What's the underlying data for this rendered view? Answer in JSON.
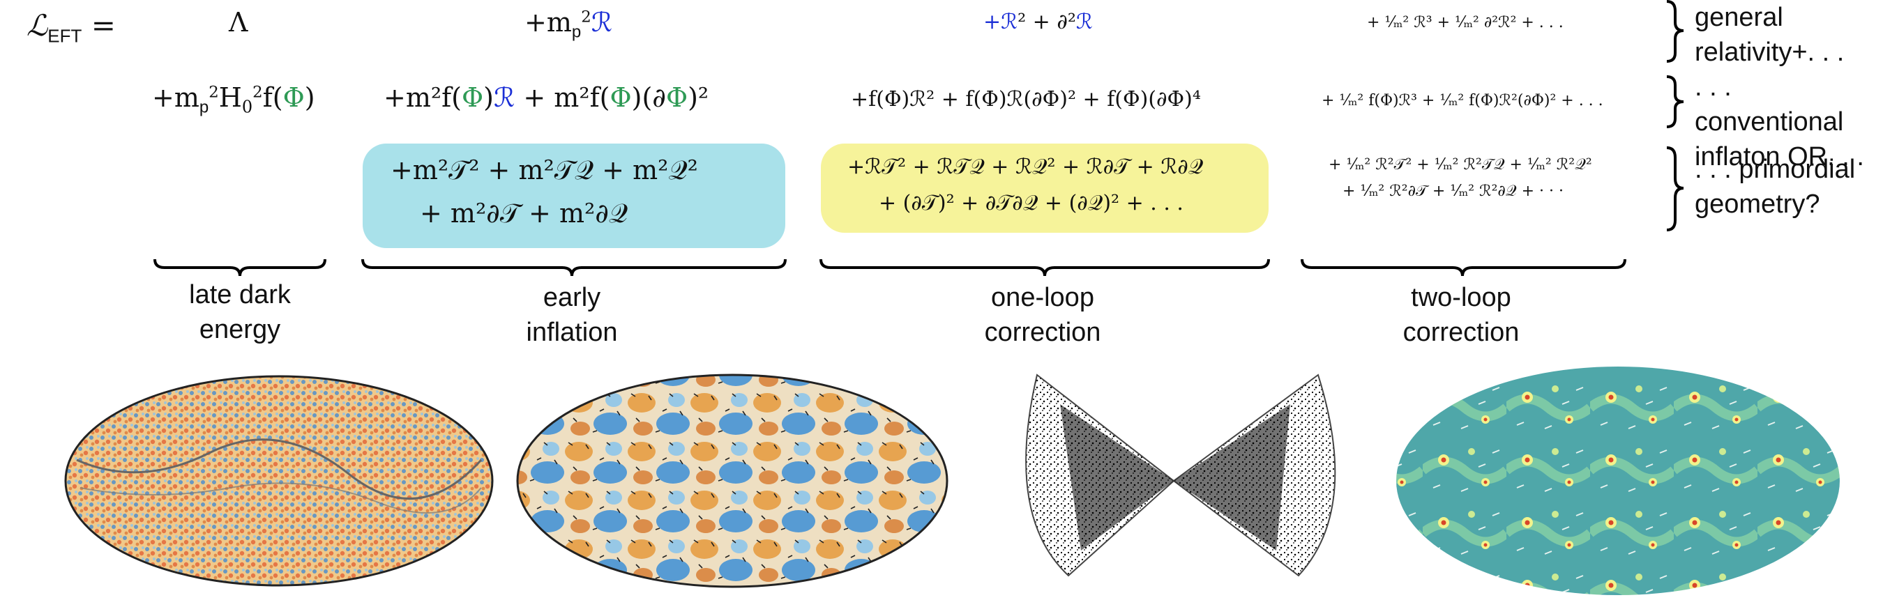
{
  "lagrangian_label": "ℒ",
  "lagrangian_sub": "EFT",
  "lagrangian_eq": " =",
  "row1": {
    "c1": "Λ",
    "c2_pre": "+m",
    "c2_sub": "p",
    "c2_sup": "2",
    "c2_R": "ℛ",
    "c3_pre": "+",
    "c3_R1": "ℛ",
    "c3_mid": "² + ∂²",
    "c3_R2": "ℛ",
    "c4": "+ ¹⁄ₘ² ℛ³ + ¹⁄ₘ² ∂²ℛ² + . . ."
  },
  "row2": {
    "c1": "+m",
    "c1_b": "H",
    "c1_c": "f(",
    "c1_phi": "Φ",
    "c1_d": ")",
    "c2": "+m²f(",
    "c2_phi": "Φ",
    "c2_b": ")",
    "c2_R": "ℛ",
    "c2_c": " + m²f(",
    "c2_phi2": "Φ",
    "c2_d": ")(∂",
    "c2_phi3": "Φ",
    "c2_e": ")²",
    "c3": "+f(Φ)ℛ² + f(Φ)ℛ(∂Φ)² + f(Φ)(∂Φ)⁴",
    "c4": "+ ¹⁄ₘ² f(Φ)ℛ³ + ¹⁄ₘ² f(Φ)ℛ²(∂Φ)² + . . ."
  },
  "row3": {
    "c2_line1": "+m²𝒯² + m²𝒯𝒬 + m²𝒬²",
    "c2_line2": "+ m²∂𝒯 + m²∂𝒬",
    "c3_line1": "+ℛ𝒯² + ℛ𝒯𝒬 + ℛ𝒬² + ℛ∂𝒯 + ℛ∂𝒬",
    "c3_line2": "+ (∂𝒯)² + ∂𝒯∂𝒬 + (∂𝒬)² + . . .",
    "c4_line1": "+ ¹⁄ₘ² ℛ²𝒯² + ¹⁄ₘ² ℛ²𝒯𝒬 + ¹⁄ₘ² ℛ²𝒬²",
    "c4_line2": "+ ¹⁄ₘ² ℛ²∂𝒯 + ¹⁄ₘ² ℛ²∂𝒬 + · · ·"
  },
  "row_labels": {
    "r1_line1": "general",
    "r1_line2": "relativity+. . .",
    "r2_line1": ". . . conventional",
    "r2_line2": "inflaton OR. . .",
    "r3_line1": ". . . primordial",
    "r3_line2": "geometry?"
  },
  "col_labels": {
    "c1_line1": "late dark",
    "c1_line2": "energy",
    "c2_line1": "early",
    "c2_line2": "inflation",
    "c3_line1": "one-loop",
    "c3_line2": "correction",
    "c4_line1": "two-loop",
    "c4_line2": "correction"
  },
  "colors": {
    "green": "#2e9a55",
    "blue": "#1b2fd6",
    "box_inflation": "#a9e1ea",
    "box_oneloop": "#f6f39a"
  },
  "images": [
    "cmb-temperature-map",
    "cmb-polarization-map",
    "galaxy-survey-cones",
    "dark-matter-density-map"
  ]
}
